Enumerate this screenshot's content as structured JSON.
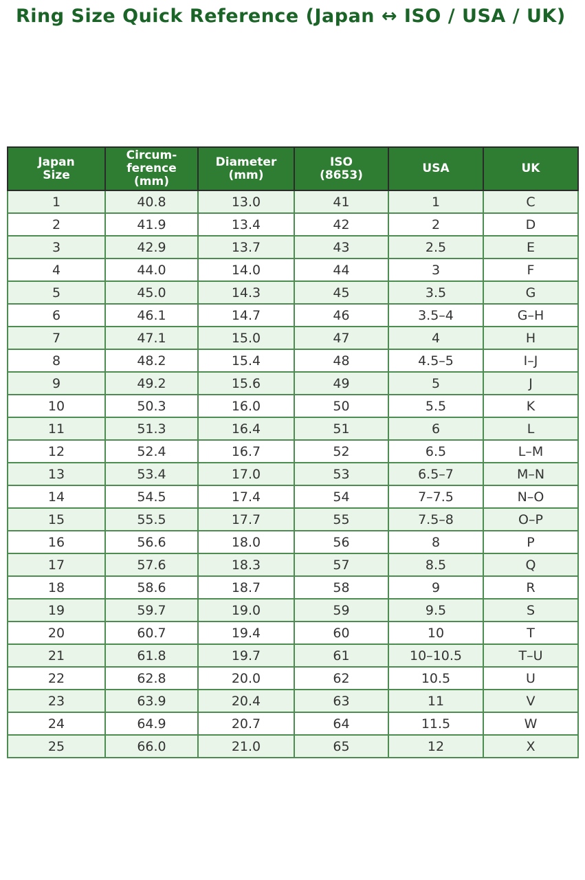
{
  "page": {
    "title": "Ring Size Quick Reference (Japan ↔ ISO / USA / UK)"
  },
  "colors": {
    "title_color": "#1b6428",
    "header_bg": "#2e7d32",
    "header_text": "#ffffff",
    "row_alt_bg": "#e9f5e9",
    "row_bg": "#ffffff",
    "body_border": "#4c8c50",
    "outer_border": "#2a2a2a",
    "cell_text": "#333333",
    "page_bg": "#ffffff"
  },
  "chart_data": {
    "type": "table",
    "title": "Ring Size Quick Reference (Japan ↔ ISO / USA / UK)",
    "columns": [
      "Japan\nSize",
      "Circum-\nference\n(mm)",
      "Diameter\n(mm)",
      "ISO\n(8653)",
      "USA",
      "UK"
    ],
    "rows": [
      [
        "1",
        "40.8",
        "13.0",
        "41",
        "1",
        "C"
      ],
      [
        "2",
        "41.9",
        "13.4",
        "42",
        "2",
        "D"
      ],
      [
        "3",
        "42.9",
        "13.7",
        "43",
        "2.5",
        "E"
      ],
      [
        "4",
        "44.0",
        "14.0",
        "44",
        "3",
        "F"
      ],
      [
        "5",
        "45.0",
        "14.3",
        "45",
        "3.5",
        "G"
      ],
      [
        "6",
        "46.1",
        "14.7",
        "46",
        "3.5–4",
        "G–H"
      ],
      [
        "7",
        "47.1",
        "15.0",
        "47",
        "4",
        "H"
      ],
      [
        "8",
        "48.2",
        "15.4",
        "48",
        "4.5–5",
        "I–J"
      ],
      [
        "9",
        "49.2",
        "15.6",
        "49",
        "5",
        "J"
      ],
      [
        "10",
        "50.3",
        "16.0",
        "50",
        "5.5",
        "K"
      ],
      [
        "11",
        "51.3",
        "16.4",
        "51",
        "6",
        "L"
      ],
      [
        "12",
        "52.4",
        "16.7",
        "52",
        "6.5",
        "L–M"
      ],
      [
        "13",
        "53.4",
        "17.0",
        "53",
        "6.5–7",
        "M–N"
      ],
      [
        "14",
        "54.5",
        "17.4",
        "54",
        "7–7.5",
        "N–O"
      ],
      [
        "15",
        "55.5",
        "17.7",
        "55",
        "7.5–8",
        "O–P"
      ],
      [
        "16",
        "56.6",
        "18.0",
        "56",
        "8",
        "P"
      ],
      [
        "17",
        "57.6",
        "18.3",
        "57",
        "8.5",
        "Q"
      ],
      [
        "18",
        "58.6",
        "18.7",
        "58",
        "9",
        "R"
      ],
      [
        "19",
        "59.7",
        "19.0",
        "59",
        "9.5",
        "S"
      ],
      [
        "20",
        "60.7",
        "19.4",
        "60",
        "10",
        "T"
      ],
      [
        "21",
        "61.8",
        "19.7",
        "61",
        "10–10.5",
        "T–U"
      ],
      [
        "22",
        "62.8",
        "20.0",
        "62",
        "10.5",
        "U"
      ],
      [
        "23",
        "63.9",
        "20.4",
        "63",
        "11",
        "V"
      ],
      [
        "24",
        "64.9",
        "20.7",
        "64",
        "11.5",
        "W"
      ],
      [
        "25",
        "66.0",
        "21.0",
        "65",
        "12",
        "X"
      ]
    ],
    "layout": {
      "header_position": "top",
      "row_striping": "odd-rows-light-green",
      "text_align": "center",
      "grid": true
    }
  }
}
